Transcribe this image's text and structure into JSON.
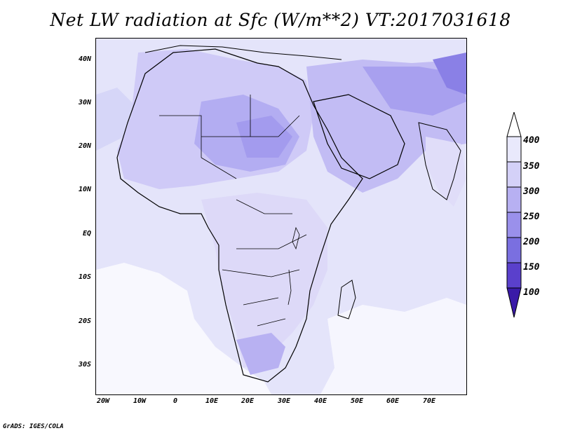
{
  "title": "Net LW radiation at Sfc (W/m**2) VT:2017031618",
  "credit": "GrADS: IGES/COLA",
  "map": {
    "lat_labels": [
      "40N",
      "30N",
      "20N",
      "10N",
      "EQ",
      "10S",
      "20S",
      "30S"
    ],
    "lon_labels": [
      "20W",
      "10W",
      "0",
      "10E",
      "20E",
      "30E",
      "40E",
      "50E",
      "60E",
      "70E"
    ]
  },
  "colorbar": {
    "levels": [
      "400",
      "350",
      "300",
      "250",
      "200",
      "150",
      "100"
    ],
    "colors": [
      "#f1f1fd",
      "#dcdcfa",
      "#c6c6f5",
      "#a89fef",
      "#8a80e6",
      "#6a5fdb",
      "#3b1fb8"
    ]
  }
}
